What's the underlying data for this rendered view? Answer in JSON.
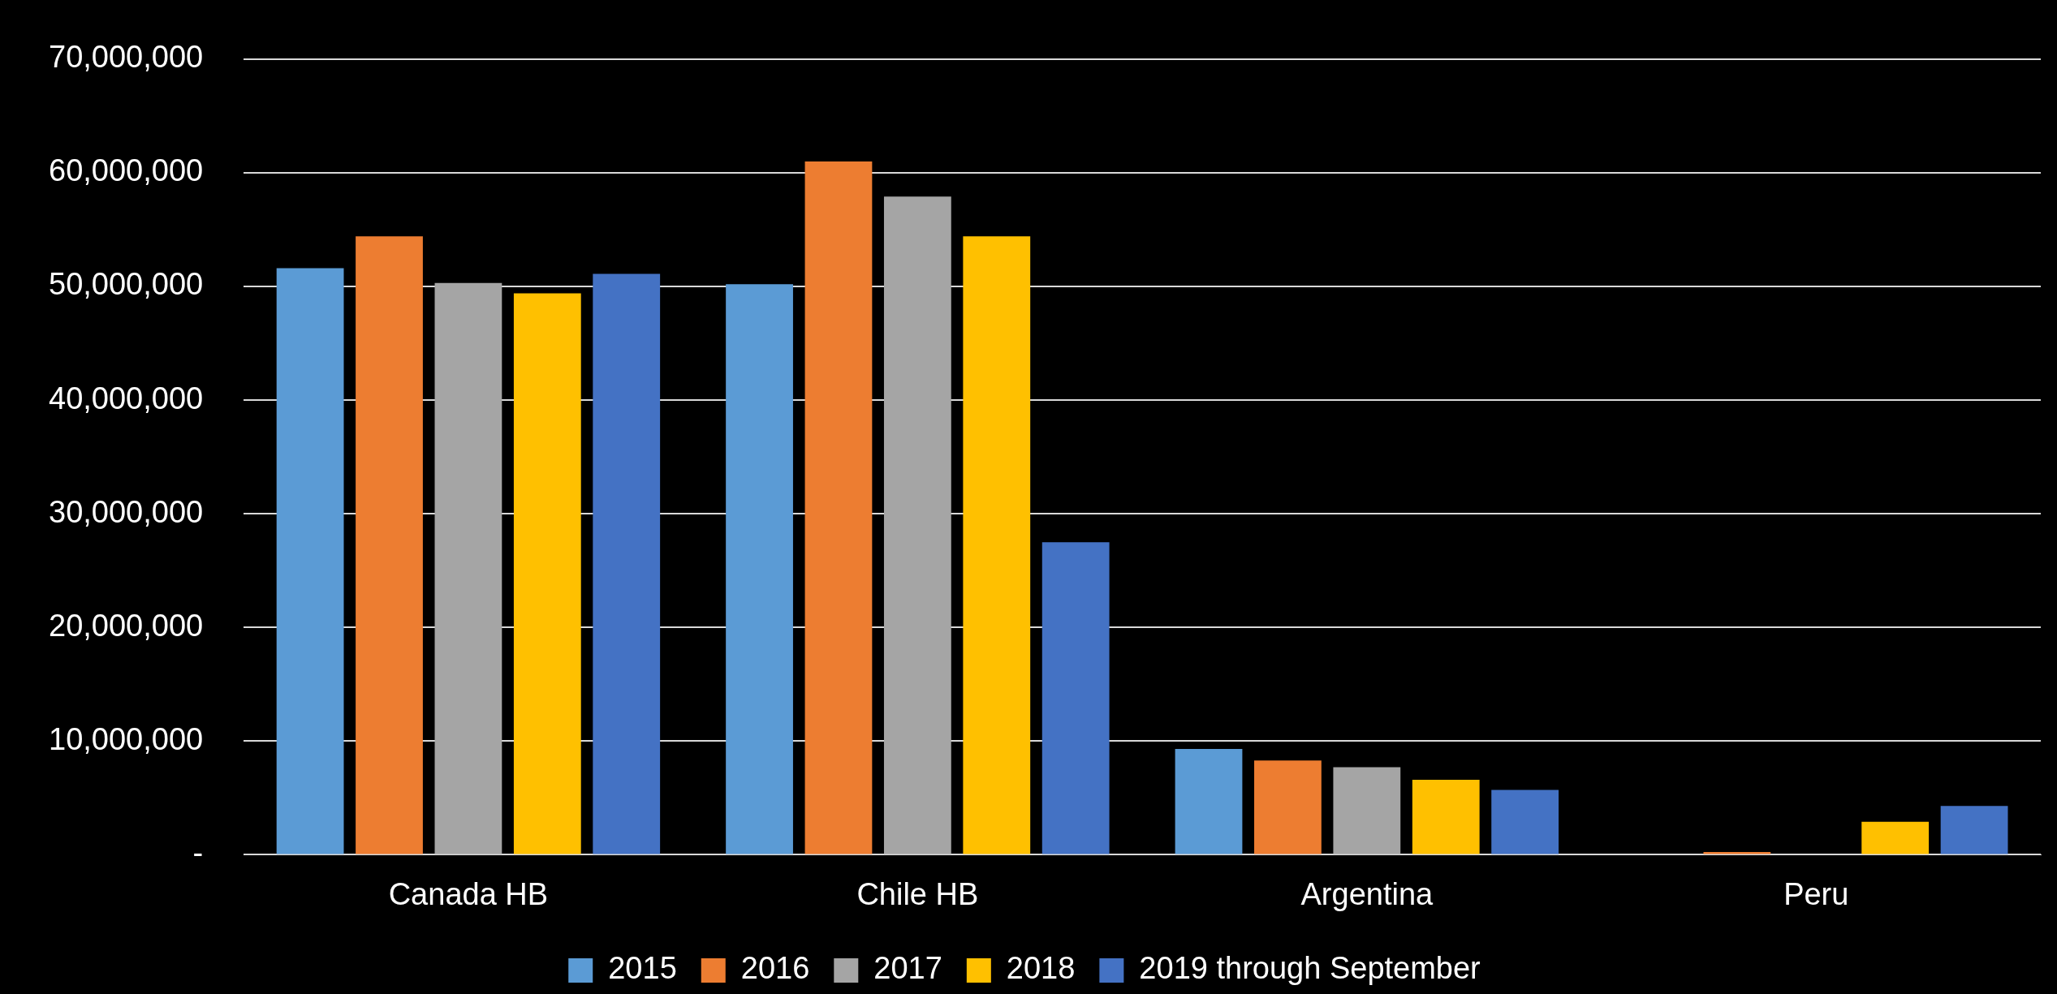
{
  "chart_data": {
    "type": "bar",
    "categories": [
      "Canada HB",
      "Chile HB",
      "Argentina",
      "Peru"
    ],
    "series": [
      {
        "name": "2015",
        "color": "#5b9bd5",
        "values": [
          51600000,
          50200000,
          9300000,
          0
        ]
      },
      {
        "name": "2016",
        "color": "#ed7d31",
        "values": [
          54400000,
          61000000,
          8300000,
          250000
        ]
      },
      {
        "name": "2017",
        "color": "#a5a5a5",
        "values": [
          50300000,
          57900000,
          7700000,
          0
        ]
      },
      {
        "name": "2018",
        "color": "#ffc000",
        "values": [
          49400000,
          54400000,
          6600000,
          2900000
        ]
      },
      {
        "name": "2019 through September",
        "color": "#4472c4",
        "values": [
          51100000,
          27500000,
          5700000,
          4300000
        ]
      }
    ],
    "ylim": [
      0,
      70000000
    ],
    "yticks": [
      {
        "value": 0,
        "label": "-"
      },
      {
        "value": 10000000,
        "label": "10,000,000"
      },
      {
        "value": 20000000,
        "label": "20,000,000"
      },
      {
        "value": 30000000,
        "label": "30,000,000"
      },
      {
        "value": 40000000,
        "label": "40,000,000"
      },
      {
        "value": 50000000,
        "label": "50,000,000"
      },
      {
        "value": 60000000,
        "label": "60,000,000"
      },
      {
        "value": 70000000,
        "label": "70,000,000"
      }
    ],
    "grid": "y",
    "legend": "bottom"
  }
}
